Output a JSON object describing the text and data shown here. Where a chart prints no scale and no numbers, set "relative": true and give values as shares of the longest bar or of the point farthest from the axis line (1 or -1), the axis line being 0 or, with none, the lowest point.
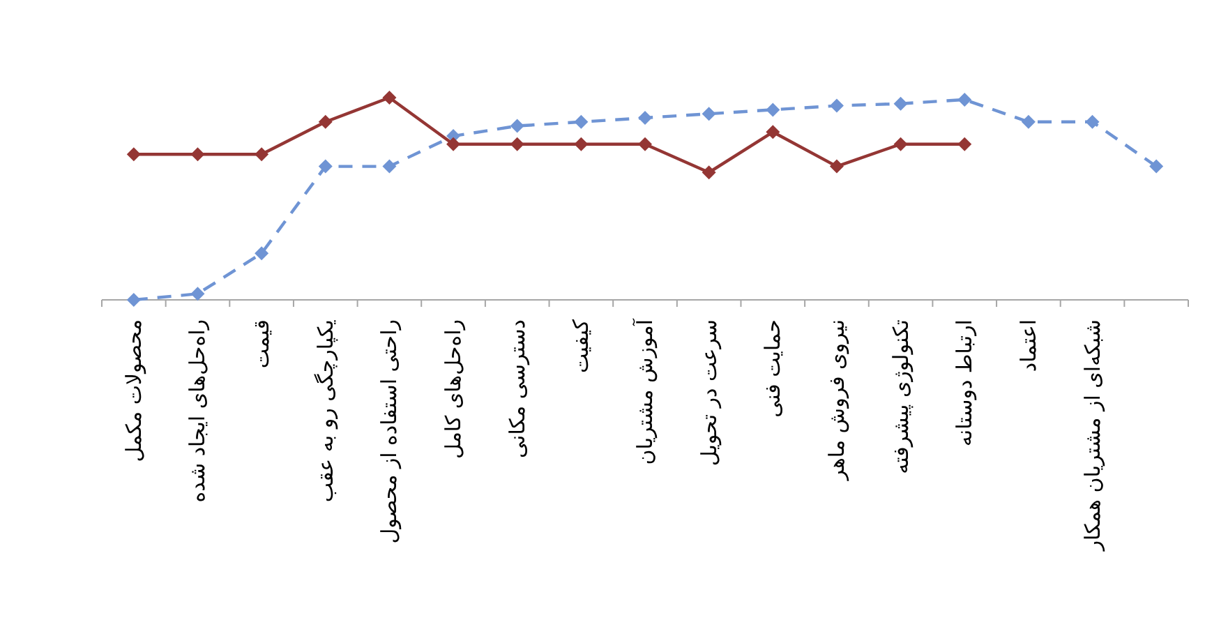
{
  "chart_data": {
    "type": "line",
    "relative": true,
    "marker": "diamond",
    "categories": [
      "محصولات مکمل",
      "راه‌حل‌های ایجاد شده",
      "قیمت",
      "یکپارچگی رو به عقب",
      "راحتی استفاده از محصول",
      "راه‌حل‌های کامل",
      "دسترسی مکانی",
      "کیفیت",
      "آموزش مشتریان",
      "سرعت در تحویل",
      "حمایت فنی",
      "نیروی فروش ماهر",
      "تکنولوژی پیشرفته",
      "ارتباط دوستانه",
      "اعتماد",
      "شبکه‌ای از مشتریان همکار",
      null
    ],
    "series": [
      {
        "color": "#6f94d4",
        "line_style": "dashed",
        "values": [
          0,
          0.03,
          0.23,
          0.66,
          0.66,
          0.81,
          0.86,
          0.88,
          0.9,
          0.92,
          0.94,
          0.96,
          0.97,
          0.99,
          0.88,
          0.88,
          0.66
        ]
      },
      {
        "color": "#943634",
        "line_style": "solid",
        "values": [
          0.72,
          0.72,
          0.72,
          0.88,
          1,
          0.77,
          0.77,
          0.77,
          0.77,
          0.63,
          0.83,
          0.66,
          0.77,
          0.77,
          null,
          null,
          null
        ]
      }
    ]
  }
}
